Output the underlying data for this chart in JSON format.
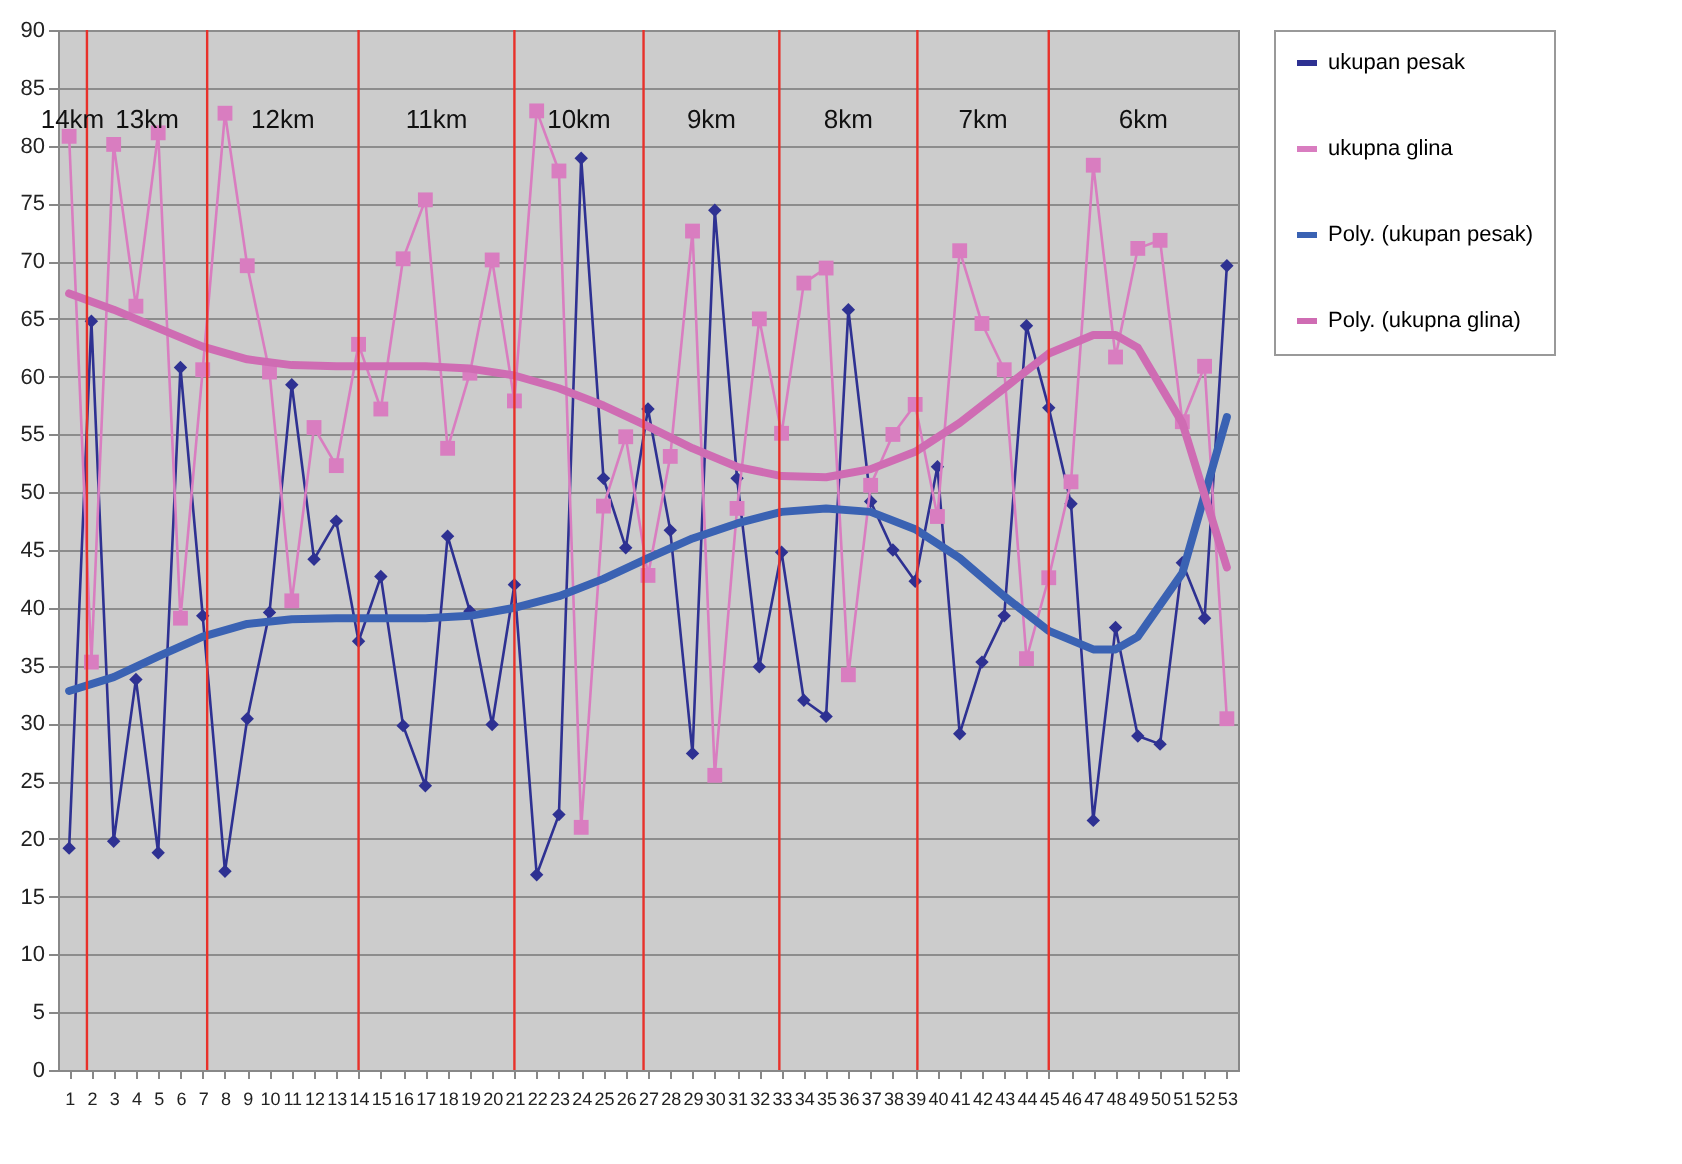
{
  "chart_data": {
    "type": "line",
    "x": [
      1,
      2,
      3,
      4,
      5,
      6,
      7,
      8,
      9,
      10,
      11,
      12,
      13,
      14,
      15,
      16,
      17,
      18,
      19,
      20,
      21,
      22,
      23,
      24,
      25,
      26,
      27,
      28,
      29,
      30,
      31,
      32,
      33,
      34,
      35,
      36,
      37,
      38,
      39,
      40,
      41,
      42,
      43,
      44,
      45,
      46,
      47,
      48,
      49,
      50,
      51,
      52,
      53
    ],
    "xlim": [
      0.5,
      53.5
    ],
    "xticks": [
      1,
      2,
      3,
      4,
      5,
      6,
      7,
      8,
      9,
      10,
      11,
      12,
      13,
      14,
      15,
      16,
      17,
      18,
      19,
      20,
      21,
      22,
      23,
      24,
      25,
      26,
      27,
      28,
      29,
      30,
      31,
      32,
      33,
      34,
      35,
      36,
      37,
      38,
      39,
      40,
      41,
      42,
      43,
      44,
      45,
      46,
      47,
      48,
      49,
      50,
      51,
      52,
      53
    ],
    "ylim": [
      0,
      90
    ],
    "yticks": [
      0,
      5,
      10,
      15,
      20,
      25,
      30,
      35,
      40,
      45,
      50,
      55,
      60,
      65,
      70,
      75,
      80,
      85,
      90
    ],
    "grid": "y",
    "legend": "right",
    "series": [
      {
        "name": "ukupan pesak",
        "color": "#2e3192",
        "marker": "diamond",
        "values": [
          19.2,
          64.8,
          19.8,
          33.8,
          18.8,
          60.8,
          39.3,
          17.2,
          30.4,
          39.6,
          59.3,
          44.2,
          47.5,
          37.1,
          42.7,
          29.8,
          24.6,
          46.2,
          39.7,
          29.9,
          42.0,
          16.9,
          22.1,
          78.9,
          51.2,
          45.2,
          57.2,
          46.7,
          27.4,
          74.4,
          51.2,
          34.9,
          44.8,
          32.0,
          30.6,
          65.8,
          49.2,
          45.0,
          42.3,
          52.2,
          29.1,
          35.3,
          39.3,
          64.4,
          57.3,
          49.0,
          21.6,
          38.3,
          28.9,
          28.2,
          43.9,
          39.1,
          69.6
        ]
      },
      {
        "name": "ukupna glina",
        "color": "#d97dc0",
        "marker": "square",
        "values": [
          80.8,
          35.3,
          80.1,
          66.1,
          81.1,
          39.1,
          60.6,
          82.8,
          69.6,
          60.4,
          40.6,
          55.6,
          52.3,
          62.8,
          57.2,
          70.2,
          75.3,
          53.8,
          60.3,
          70.1,
          57.9,
          83.0,
          77.8,
          21.0,
          48.8,
          54.8,
          42.8,
          53.1,
          72.6,
          25.5,
          48.6,
          65.0,
          55.1,
          68.1,
          69.4,
          34.2,
          50.6,
          55.0,
          57.6,
          47.9,
          70.9,
          64.6,
          60.6,
          35.6,
          42.6,
          50.9,
          78.3,
          61.7,
          71.1,
          71.8,
          56.1,
          60.9,
          30.4
        ]
      },
      {
        "name": "Poly. (ukupan pesak)",
        "color": "#3a62b3",
        "marker": "none",
        "x": [
          1,
          3,
          5,
          7,
          9,
          11,
          13,
          15,
          17,
          19,
          21,
          23,
          25,
          27,
          29,
          31,
          33,
          35,
          37,
          39,
          41,
          43,
          45,
          47,
          48,
          49,
          51,
          53
        ],
        "values": [
          32.8,
          34.0,
          35.8,
          37.5,
          38.6,
          39.0,
          39.1,
          39.1,
          39.1,
          39.3,
          40.0,
          41.0,
          42.5,
          44.3,
          46.0,
          47.3,
          48.3,
          48.6,
          48.3,
          46.8,
          44.3,
          41.0,
          38.0,
          36.4,
          36.4,
          37.5,
          43.0,
          56.5
        ]
      },
      {
        "name": "Poly. (ukupna glina)",
        "color": "#cf6cb3",
        "marker": "none",
        "x": [
          1,
          3,
          5,
          7,
          9,
          11,
          13,
          15,
          17,
          19,
          21,
          23,
          25,
          27,
          29,
          31,
          33,
          35,
          37,
          39,
          41,
          43,
          45,
          47,
          48,
          49,
          51,
          53
        ],
        "values": [
          67.2,
          65.8,
          64.2,
          62.6,
          61.5,
          61.0,
          60.9,
          60.9,
          60.9,
          60.7,
          60.1,
          59.0,
          57.5,
          55.7,
          53.8,
          52.2,
          51.4,
          51.3,
          52.0,
          53.5,
          56.0,
          59.0,
          62.0,
          63.6,
          63.6,
          62.5,
          56.0,
          43.5
        ]
      }
    ],
    "ref_lines": [
      {
        "axis": "x",
        "value": 1.8,
        "color": "#e8312a"
      },
      {
        "axis": "x",
        "value": 7.2,
        "color": "#e8312a"
      },
      {
        "axis": "x",
        "value": 14,
        "color": "#e8312a"
      },
      {
        "axis": "x",
        "value": 21,
        "color": "#e8312a"
      },
      {
        "axis": "x",
        "value": 26.8,
        "color": "#e8312a"
      },
      {
        "axis": "x",
        "value": 32.9,
        "color": "#e8312a"
      },
      {
        "axis": "x",
        "value": 39.1,
        "color": "#e8312a"
      },
      {
        "axis": "x",
        "value": 45,
        "color": "#e8312a"
      }
    ],
    "annotations": [
      "14km",
      "13km",
      "12km",
      "11km",
      "10km",
      "9km",
      "8km",
      "7km",
      "6km"
    ]
  }
}
